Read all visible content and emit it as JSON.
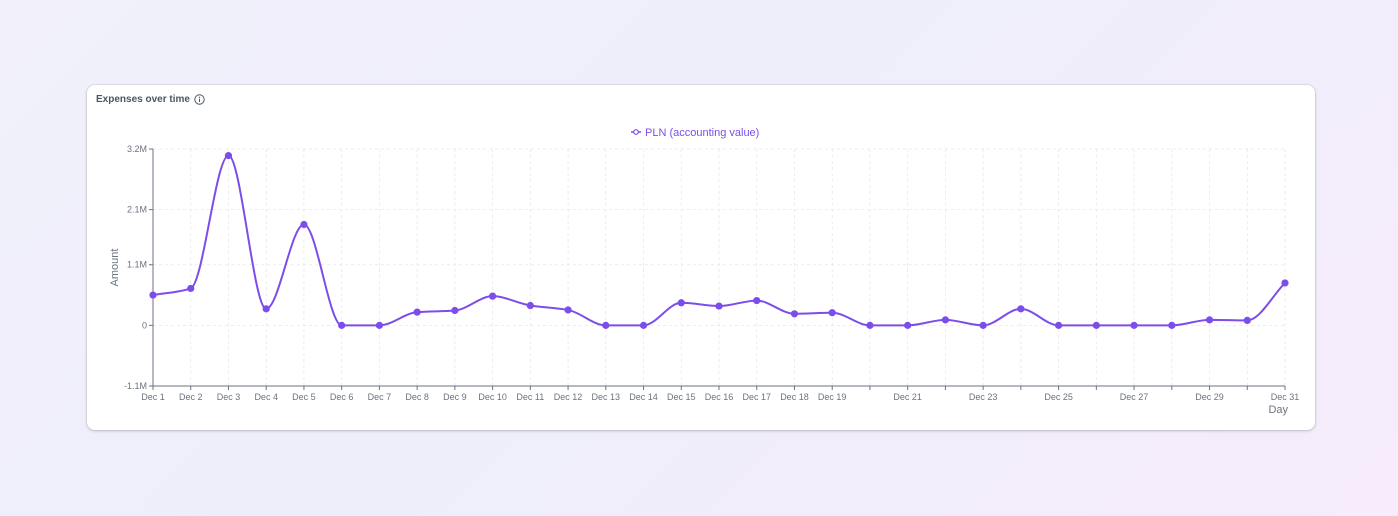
{
  "card": {
    "title": "Expenses over time"
  },
  "colors": {
    "series": "#7c4dea",
    "grid": "#e5e7eb",
    "axis": "#6b7280"
  },
  "chart_data": {
    "type": "line",
    "title": "Expenses over time",
    "xlabel": "Day",
    "ylabel": "Amount",
    "legend_position": "top-center",
    "grid": true,
    "smooth": true,
    "ylim": [
      -1100000,
      3200000
    ],
    "y_ticks": [
      {
        "value": -1100000,
        "label": "-1.1M"
      },
      {
        "value": 0,
        "label": "0"
      },
      {
        "value": 1100000,
        "label": "1.1M"
      },
      {
        "value": 2100000,
        "label": "2.1M"
      },
      {
        "value": 3200000,
        "label": "3.2M"
      }
    ],
    "x_tick_labels": [
      "Dec 1",
      "Dec 2",
      "Dec 3",
      "Dec 4",
      "Dec 5",
      "Dec 6",
      "Dec 7",
      "Dec 8",
      "Dec 9",
      "Dec 10",
      "Dec 11",
      "Dec 12",
      "Dec 13",
      "Dec 14",
      "Dec 15",
      "Dec 16",
      "Dec 17",
      "Dec 18",
      "Dec 19",
      "",
      "Dec 21",
      "",
      "Dec 23",
      "",
      "Dec 25",
      "",
      "Dec 27",
      "",
      "Dec 29",
      "",
      "Dec 31"
    ],
    "x": [
      "Dec 1",
      "Dec 2",
      "Dec 3",
      "Dec 4",
      "Dec 5",
      "Dec 6",
      "Dec 7",
      "Dec 8",
      "Dec 9",
      "Dec 10",
      "Dec 11",
      "Dec 12",
      "Dec 13",
      "Dec 14",
      "Dec 15",
      "Dec 16",
      "Dec 17",
      "Dec 18",
      "Dec 19",
      "Dec 20",
      "Dec 21",
      "Dec 22",
      "Dec 23",
      "Dec 24",
      "Dec 25",
      "Dec 26",
      "Dec 27",
      "Dec 28",
      "Dec 29",
      "Dec 30",
      "Dec 31"
    ],
    "series": [
      {
        "name": "PLN (accounting value)",
        "values": [
          550000,
          670000,
          3080000,
          300000,
          1830000,
          0,
          0,
          240000,
          270000,
          530000,
          360000,
          280000,
          0,
          0,
          410000,
          350000,
          450000,
          210000,
          230000,
          0,
          0,
          100000,
          0,
          300000,
          0,
          0,
          0,
          0,
          100000,
          90000,
          770000
        ]
      }
    ]
  }
}
